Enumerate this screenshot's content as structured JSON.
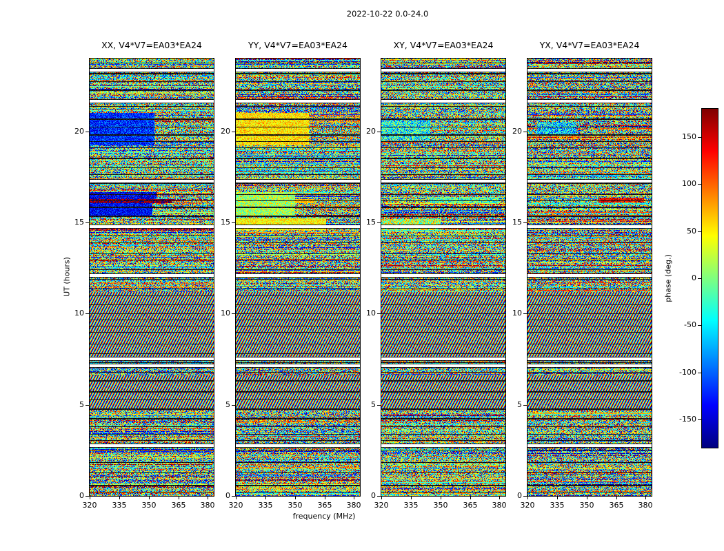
{
  "chart_data": {
    "type": "heatmap",
    "title": "2022-10-22 0.0-24.0",
    "xlabel": "frequency (MHz)",
    "ylabel": "UT (hours)",
    "x_ticks": [
      320,
      335,
      350,
      365,
      380
    ],
    "y_ticks": [
      0,
      5,
      10,
      15,
      20
    ],
    "x_range": [
      320,
      383
    ],
    "y_range": [
      0,
      24
    ],
    "colormap": "jet",
    "value_range": [
      -180,
      180
    ],
    "values_description": "per-pixel interferometric visibility phase speckle (dynamic spectra); individual pixel values not resolvable, coherent bands listed as features",
    "colorbar": {
      "label": "phase (deg.)",
      "ticks": [
        150,
        100,
        50,
        0,
        -50,
        -100,
        -150
      ]
    },
    "panels": [
      {
        "id": "XX",
        "title": "XX, V4*V7=EA03*EA24",
        "features": [
          {
            "ut": [
              19.25,
              21.0
            ],
            "freq": [
              320,
              353
            ],
            "phase": -120,
            "spread": 45
          },
          {
            "ut": [
              20.1,
              20.55
            ],
            "freq": [
              320,
              348
            ],
            "phase": -95,
            "spread": 30
          },
          {
            "ut": [
              15.35,
              16.05
            ],
            "freq": [
              320,
              352
            ],
            "phase": -135,
            "spread": 40
          },
          {
            "ut": [
              16.05,
              16.3
            ],
            "freq": [
              320,
              362
            ],
            "phase": 172,
            "spread": 25
          },
          {
            "ut": [
              16.3,
              16.65
            ],
            "freq": [
              320,
              354
            ],
            "phase": -140,
            "spread": 45
          },
          {
            "ut": [
              14.55,
              14.75
            ],
            "freq": [
              320,
              383
            ],
            "phase": 150,
            "spread": 70
          }
        ]
      },
      {
        "id": "YY",
        "title": "YY, V4*V7=EA03*EA24",
        "features": [
          {
            "ut": [
              19.25,
              21.0
            ],
            "freq": [
              320,
              357
            ],
            "phase": 55,
            "spread": 40
          },
          {
            "ut": [
              20.1,
              20.6
            ],
            "freq": [
              320,
              352
            ],
            "phase": 80,
            "spread": 25
          },
          {
            "ut": [
              14.6,
              15.25
            ],
            "freq": [
              320,
              366
            ],
            "phase": 45,
            "spread": 35
          },
          {
            "ut": [
              15.35,
              16.65
            ],
            "freq": [
              320,
              350
            ],
            "phase": 15,
            "spread": 60
          },
          {
            "ut": [
              16.05,
              16.3
            ],
            "freq": [
              320,
              360
            ],
            "phase": 65,
            "spread": 30
          }
        ]
      },
      {
        "id": "XY",
        "title": "XY, V4*V7=EA03*EA24",
        "features": [
          {
            "ut": [
              16.05,
              16.35
            ],
            "freq": [
              345,
              380
            ],
            "phase": -20,
            "spread": 70
          },
          {
            "ut": [
              19.5,
              20.6
            ],
            "freq": [
              320,
              345
            ],
            "phase": -40,
            "spread": 80
          },
          {
            "ut": [
              14.6,
              15.2
            ],
            "freq": [
              320,
              350
            ],
            "phase": 20,
            "spread": 80
          }
        ]
      },
      {
        "id": "YX",
        "title": "YX, V4*V7=EA03*EA24",
        "features": [
          {
            "ut": [
              16.1,
              16.35
            ],
            "freq": [
              356,
              379
            ],
            "phase": 140,
            "spread": 45
          },
          {
            "ut": [
              19.8,
              20.5
            ],
            "freq": [
              325,
              345
            ],
            "phase": -60,
            "spread": 80
          }
        ]
      }
    ],
    "shared_structure": {
      "white_gaps_ut": [
        23.4,
        21.7,
        17.3,
        14.8,
        12.15,
        7.55,
        7.2,
        2.8
      ],
      "structured_bands_ut": [
        [
          7.55,
          11.2
        ],
        [
          4.7,
          6.6
        ]
      ],
      "scan_boundary_lines": "thin dark horizontal lines roughly every 10-18 pixels, shared across all four panels"
    }
  }
}
